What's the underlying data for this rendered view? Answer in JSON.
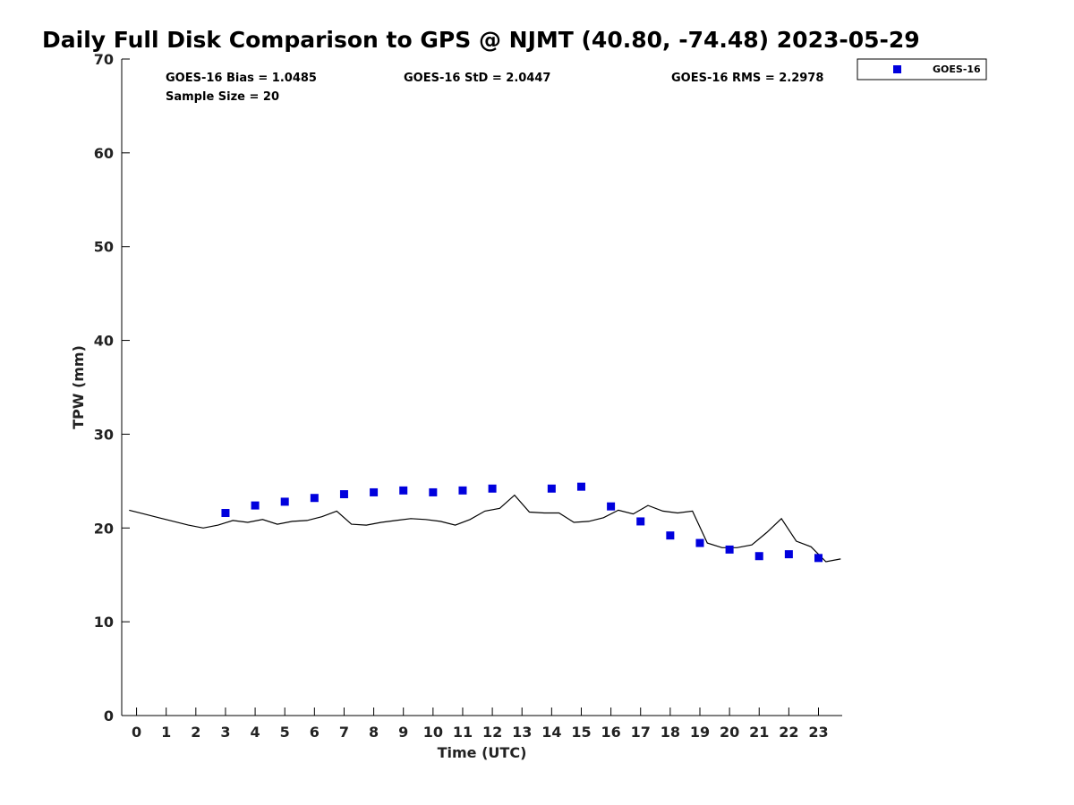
{
  "chart_data": {
    "type": "scatter",
    "title": "Daily Full Disk Comparison to GPS @ NJMT (40.80, -74.48) 2023-05-29",
    "xlabel": "Time (UTC)",
    "ylabel": "TPW (mm)",
    "xlim": [
      -0.5,
      23.8
    ],
    "ylim": [
      0,
      70
    ],
    "x_ticks": [
      0,
      1,
      2,
      3,
      4,
      5,
      6,
      7,
      8,
      9,
      10,
      11,
      12,
      13,
      14,
      15,
      16,
      17,
      18,
      19,
      20,
      21,
      22,
      23
    ],
    "y_ticks": [
      0,
      10,
      20,
      30,
      40,
      50,
      60,
      70
    ],
    "grid": false,
    "legend_position": "top-right",
    "stats": {
      "bias": "GOES-16 Bias = 1.0485",
      "std": "GOES-16 StD = 2.0447",
      "rms": "GOES-16 RMS = 2.2978",
      "sample": "Sample Size = 20"
    },
    "series": [
      {
        "name": "GOES-16",
        "kind": "markers",
        "color": "#0000dd",
        "x": [
          3,
          4,
          5,
          6,
          7,
          8,
          9,
          10,
          11,
          12,
          14,
          15,
          16,
          17,
          18,
          19,
          20,
          21,
          22,
          23
        ],
        "y": [
          21.6,
          22.4,
          22.8,
          23.2,
          23.6,
          23.8,
          24.0,
          23.8,
          24.0,
          24.2,
          24.2,
          24.4,
          22.3,
          20.7,
          19.2,
          18.4,
          17.7,
          17.0,
          17.2,
          16.8
        ]
      },
      {
        "kind": "line",
        "color": "#000000",
        "x": [
          -0.25,
          0.25,
          0.75,
          1.25,
          1.75,
          2.25,
          2.75,
          3.25,
          3.75,
          4.25,
          4.75,
          5.25,
          5.75,
          6.25,
          6.75,
          7.25,
          7.75,
          8.25,
          8.75,
          9.25,
          9.75,
          10.25,
          10.75,
          11.25,
          11.75,
          12.25,
          12.75,
          13.25,
          13.75,
          14.25,
          14.75,
          15.25,
          15.75,
          16.25,
          16.75,
          17.25,
          17.75,
          18.25,
          18.75,
          19.25,
          19.75,
          20.25,
          20.75,
          21.25,
          21.75,
          22.25,
          22.75,
          23.25,
          23.75
        ],
        "y": [
          21.9,
          21.5,
          21.1,
          20.7,
          20.3,
          20.0,
          20.3,
          20.8,
          20.6,
          20.9,
          20.4,
          20.7,
          20.8,
          21.2,
          21.8,
          20.4,
          20.3,
          20.6,
          20.8,
          21.0,
          20.9,
          20.7,
          20.3,
          20.9,
          21.8,
          22.1,
          23.5,
          21.7,
          21.6,
          21.6,
          20.6,
          20.7,
          21.1,
          21.9,
          21.5,
          22.4,
          21.8,
          21.6,
          21.8,
          18.4,
          17.9,
          17.9,
          18.2,
          19.5,
          21.0,
          18.6,
          18.0,
          16.4,
          16.7
        ]
      }
    ]
  }
}
